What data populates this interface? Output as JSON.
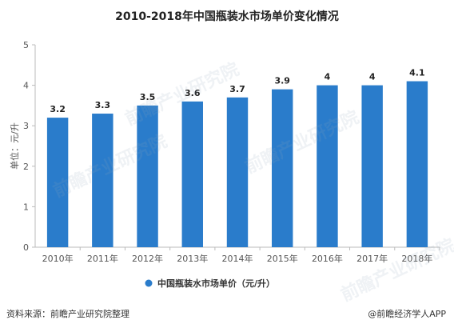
{
  "chart_data": {
    "type": "bar",
    "title": "2010-2018年中国瓶装水市场单价变化情况",
    "categories": [
      "2010年",
      "2011年",
      "2012年",
      "2013年",
      "2014年",
      "2015年",
      "2016年",
      "2017年",
      "2018年"
    ],
    "series": [
      {
        "name": "中国瓶装水市场单价（元/升）",
        "values": [
          3.2,
          3.3,
          3.5,
          3.6,
          3.7,
          3.9,
          4,
          4,
          4.1
        ]
      }
    ],
    "ylabel": "单位：元/升",
    "ylim": [
      0,
      5
    ],
    "yticks": [
      0,
      1,
      2,
      3,
      4,
      5
    ],
    "grid": false,
    "legend": "bottom-center",
    "bar_color": "#2a7ccb"
  },
  "footer": {
    "source": "资料来源：前瞻产业研究院整理",
    "brand": "@前瞻经济学人APP"
  },
  "watermark": "前瞻产业研究院"
}
